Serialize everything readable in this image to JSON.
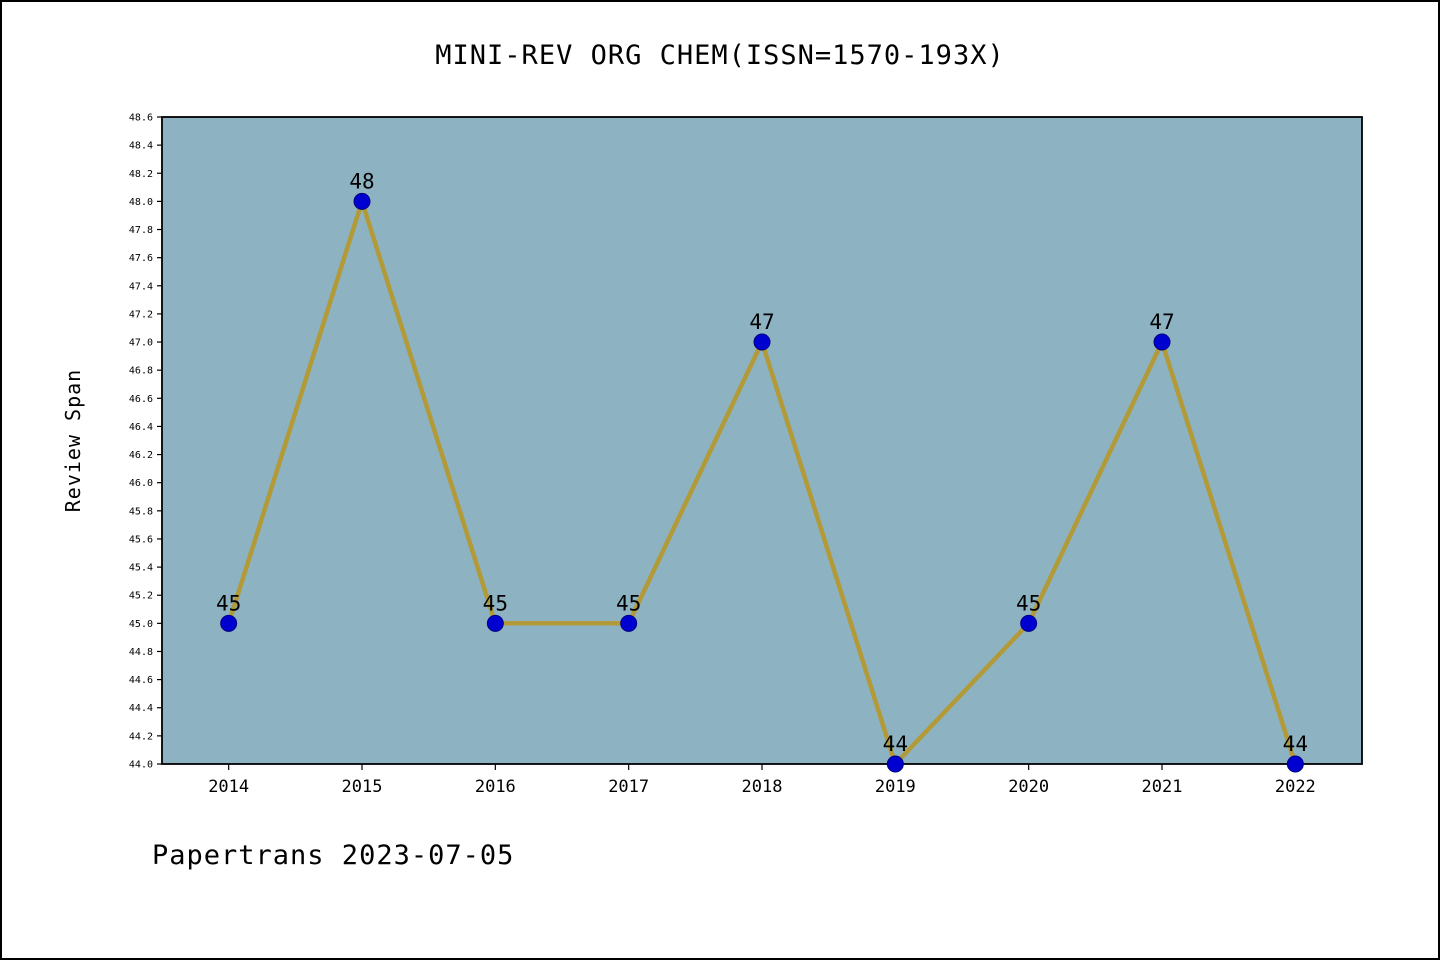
{
  "title": "MINI-REV ORG CHEM(ISSN=1570-193X)",
  "footer": {
    "text": "Papertrans 2023-07-05"
  },
  "chart_data": {
    "type": "line",
    "title": "MINI-REV ORG CHEM(ISSN=1570-193X)",
    "xlabel": "",
    "ylabel": "Review Span",
    "categories": [
      "2014",
      "2015",
      "2016",
      "2017",
      "2018",
      "2019",
      "2020",
      "2021",
      "2022"
    ],
    "values": [
      45,
      48,
      45,
      45,
      47,
      44,
      45,
      47,
      44
    ],
    "ylim": [
      44.0,
      48.6
    ],
    "ytick_step": 0.2,
    "grid": false,
    "legend": "none",
    "colors": {
      "plot_bg": "#8db3c2",
      "line": "#b39a38",
      "marker_fill": "#0000d0",
      "marker_edge": "#000080",
      "axis": "#000000"
    }
  }
}
